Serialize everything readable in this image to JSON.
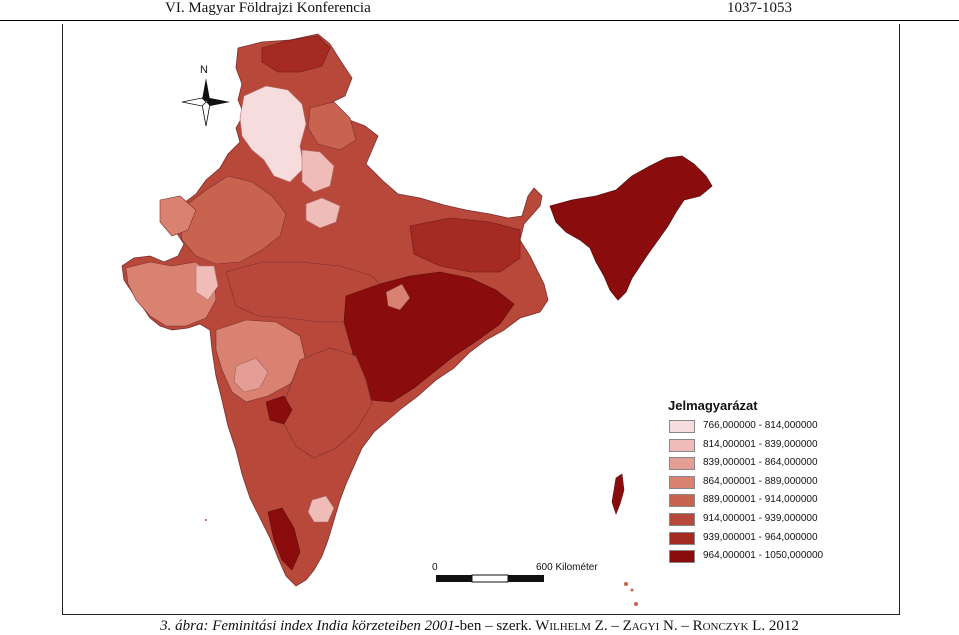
{
  "header": {
    "left": "VI. Magyar Földrajzi Konferencia",
    "right": "1037-1053"
  },
  "map": {
    "north_label": "N",
    "legend_title": "Jelmagyarázat",
    "legend": [
      {
        "label": "766,000000 - 814,000000",
        "color": "#f6dcdc"
      },
      {
        "label": "814,000001 - 839,000000",
        "color": "#efbcb8"
      },
      {
        "label": "839,000001 - 864,000000",
        "color": "#e49e96"
      },
      {
        "label": "864,000001 - 889,000000",
        "color": "#d98272"
      },
      {
        "label": "889,000001 - 914,000000",
        "color": "#c8634f"
      },
      {
        "label": "914,000001 - 939,000000",
        "color": "#b8483a"
      },
      {
        "label": "939,000001 - 964,000000",
        "color": "#a52a22"
      },
      {
        "label": "964,000001 - 1050,000000",
        "color": "#8a0c0c"
      }
    ],
    "scale": {
      "zero": "0",
      "label": "600 Kilométer"
    }
  },
  "caption": {
    "part1": "3. ábra: Feminitási index India körzeteiben 2001",
    "part2": "-ben – szerk. W",
    "part3": "ILHELM",
    "part4": " Z. – Z",
    "part5": "AGYI",
    "part6": " N. – R",
    "part7": "ONCZYK",
    "part8": " L. 2012"
  }
}
